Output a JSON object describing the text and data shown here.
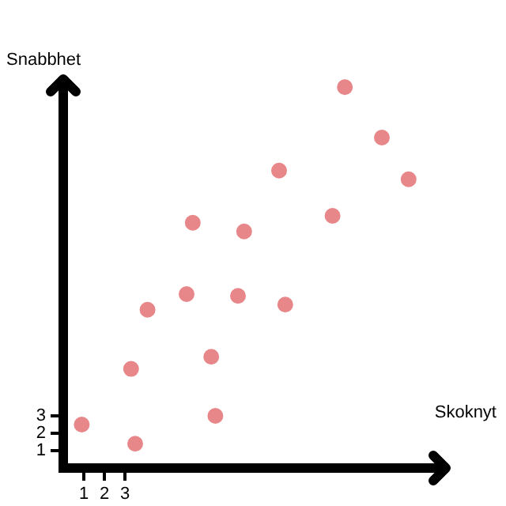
{
  "chart_data": {
    "type": "scatter",
    "xlabel": "Skoknyt",
    "ylabel": "Snabbhet",
    "x": [
      0.9,
      3.5,
      3.3,
      4.1,
      6.0,
      6.3,
      7.2,
      7.4,
      8.5,
      8.8,
      10.8,
      10.5,
      13.1,
      13.7,
      15.5,
      16.8
    ],
    "series": [
      {
        "color": "#e8878a",
        "values": [
          2.5,
          1.4,
          5.7,
          9.1,
          10.0,
          14.1,
          6.4,
          3.0,
          9.9,
          13.6,
          9.4,
          17.1,
          14.5,
          21.9,
          19.0,
          16.6
        ]
      }
    ],
    "xlim": [
      0,
      18.7
    ],
    "ylim": [
      0,
      22.5
    ],
    "xticks": [
      1,
      2,
      3
    ],
    "yticks": [
      1,
      2,
      3
    ],
    "marker": "circle",
    "grid": false,
    "legend": false
  }
}
